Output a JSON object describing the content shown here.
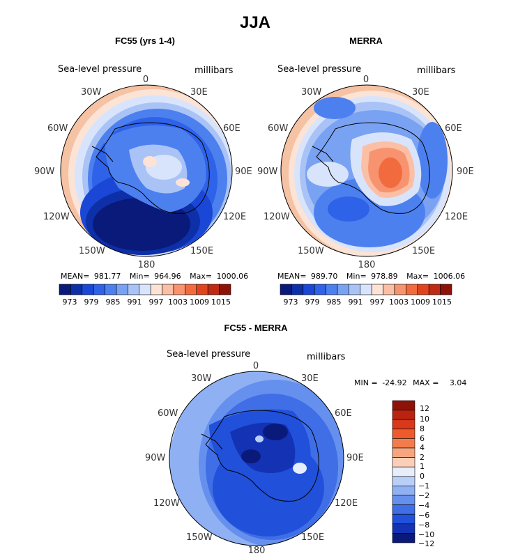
{
  "figure_title": "JJA",
  "chart_data": [
    {
      "type": "heatmap",
      "projection": "south-polar-stereographic",
      "title": "FC55 (yrs 1-4)",
      "variable": "Sea-level pressure",
      "units": "millibars",
      "lon_labels": [
        "0",
        "30E",
        "60E",
        "90E",
        "120E",
        "150E",
        "180",
        "150W",
        "120W",
        "90W",
        "60W",
        "30W"
      ],
      "stats": {
        "mean_label": "MEAN=",
        "mean": "981.77",
        "min_label": "Min=",
        "min": "964.96",
        "max_label": "Max=",
        "max": "1000.06"
      },
      "colorbar": {
        "orientation": "horizontal",
        "tick_labels": [
          "973",
          "979",
          "985",
          "991",
          "997",
          "1003",
          "1009",
          "1015"
        ]
      }
    },
    {
      "type": "heatmap",
      "projection": "south-polar-stereographic",
      "title": "MERRA",
      "variable": "Sea-level pressure",
      "units": "millibars",
      "lon_labels": [
        "0",
        "30E",
        "60E",
        "90E",
        "120E",
        "150E",
        "180",
        "150W",
        "120W",
        "90W",
        "60W",
        "30W"
      ],
      "stats": {
        "mean_label": "MEAN=",
        "mean": "989.70",
        "min_label": "Min=",
        "min": "978.89",
        "max_label": "Max=",
        "max": "1006.06"
      },
      "colorbar": {
        "orientation": "horizontal",
        "tick_labels": [
          "973",
          "979",
          "985",
          "991",
          "997",
          "1003",
          "1009",
          "1015"
        ]
      }
    },
    {
      "type": "heatmap",
      "projection": "south-polar-stereographic",
      "title": "FC55 - MERRA",
      "variable": "Sea-level pressure",
      "units": "millibars",
      "lon_labels": [
        "0",
        "30E",
        "60E",
        "90E",
        "120E",
        "150E",
        "180",
        "150W",
        "120W",
        "90W",
        "60W",
        "30W"
      ],
      "stats": {
        "min_label": "MIN =",
        "min": "-24.92",
        "max_label": "MAX =",
        "max": "3.04"
      },
      "colorbar": {
        "orientation": "vertical",
        "tick_labels": [
          "12",
          "10",
          "8",
          "6",
          "4",
          "2",
          "1",
          "0",
          "−1",
          "−2",
          "−4",
          "−6",
          "−8",
          "−10",
          "−12"
        ]
      }
    }
  ],
  "colors": {
    "abs_scale": [
      "#0a1a7a",
      "#0d2fa8",
      "#1a47d6",
      "#2e62e8",
      "#4d80ef",
      "#7aa2f2",
      "#a9c3f6",
      "#d8e4fb",
      "#fde2d6",
      "#fbbfa6",
      "#f7946f",
      "#f26b3f",
      "#e0441f",
      "#c02a12",
      "#8f1208"
    ],
    "diff_scale": [
      "#8f1208",
      "#b8240f",
      "#d9381a",
      "#ee5a2c",
      "#f37c4c",
      "#f7a57e",
      "#fbcfb7",
      "#e6eefc",
      "#b9cff8",
      "#8fb1f3",
      "#6690ed",
      "#3f6ee6",
      "#2150da",
      "#1333b4",
      "#0a1a7a"
    ]
  }
}
